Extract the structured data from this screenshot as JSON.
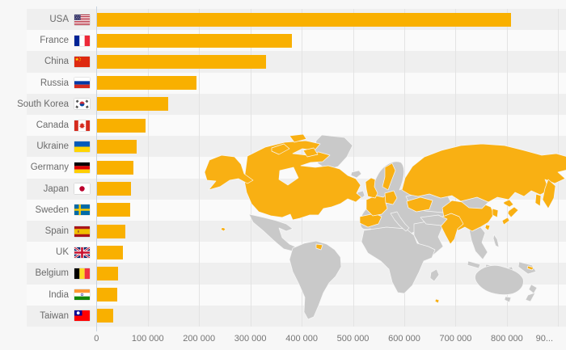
{
  "chart_data": {
    "type": "bar",
    "orientation": "horizontal",
    "title": "",
    "xlabel": "",
    "ylabel": "",
    "categories": [
      "USA",
      "France",
      "China",
      "Russia",
      "South Korea",
      "Canada",
      "Ukraine",
      "Germany",
      "Japan",
      "Sweden",
      "Spain",
      "UK",
      "Belgium",
      "India",
      "Taiwan"
    ],
    "values": [
      807000,
      380000,
      329000,
      194000,
      138000,
      94000,
      77000,
      71000,
      66000,
      64000,
      55000,
      50000,
      41000,
      40000,
      32000
    ],
    "flags": [
      "us",
      "fr",
      "cn",
      "ru",
      "kr",
      "ca",
      "ua",
      "de",
      "jp",
      "se",
      "es",
      "gb",
      "be",
      "in",
      "tw"
    ],
    "xlim": [
      0,
      900000
    ],
    "x_tick_values": [
      0,
      100000,
      200000,
      300000,
      400000,
      500000,
      600000,
      700000,
      800000,
      900000
    ],
    "x_tick_labels": [
      "0",
      "100 000",
      "200 000",
      "300 000",
      "400 000",
      "500 000",
      "600 000",
      "700 000",
      "800 000",
      "90..."
    ],
    "grid": true,
    "legend": false,
    "bar_color": "#f9b000",
    "row_stripes": true
  },
  "map": {
    "highlighted_countries": [
      "USA",
      "Canada",
      "France",
      "China",
      "Russia",
      "South Korea",
      "Ukraine",
      "Germany",
      "Japan",
      "Sweden",
      "Spain",
      "UK",
      "Belgium",
      "India",
      "Taiwan",
      "French Guiana",
      "Hawaii",
      "New Caledonia",
      "Reunion"
    ],
    "highlight_color": "#f9b013",
    "base_color": "#c9c9c9"
  },
  "colors": {
    "background": "#f7f7f7",
    "stripe_odd": "#efefef",
    "stripe_even": "#fafafa",
    "gridline": "#e3e3e3",
    "axis_line": "#c7d3e0",
    "label_text": "#6b6b6b"
  }
}
